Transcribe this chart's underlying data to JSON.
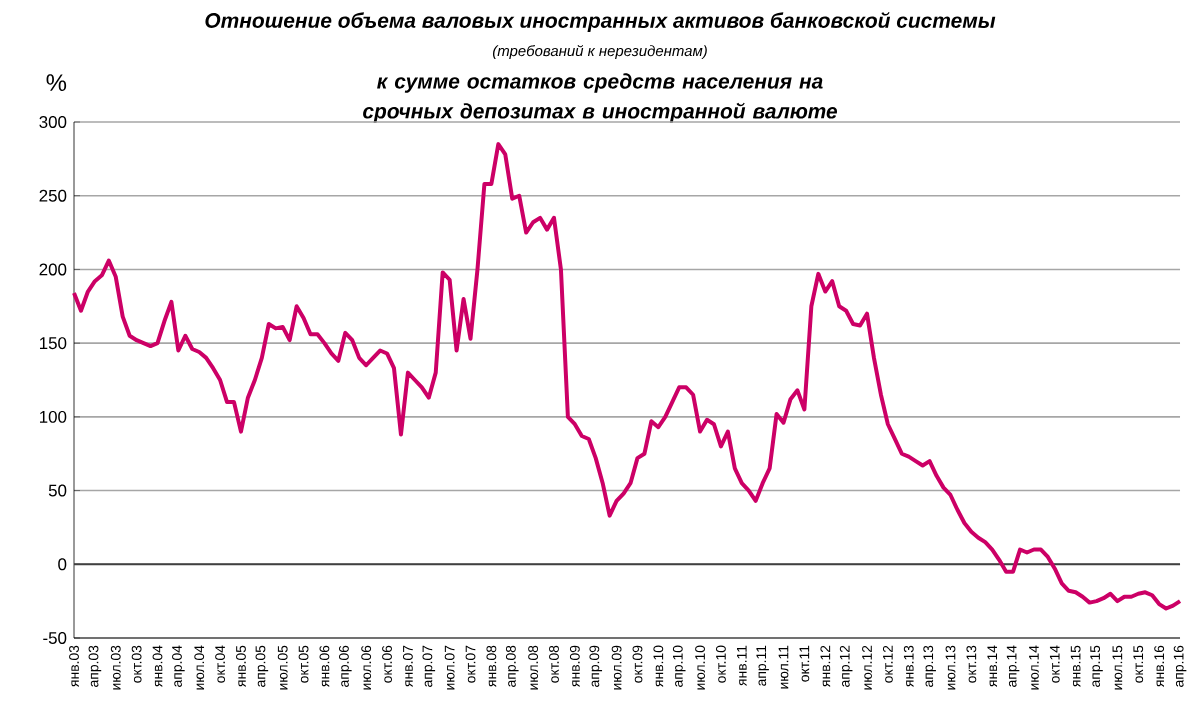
{
  "chart_data": {
    "type": "line",
    "title": "Отношение объема валовых иностранных активов банковской системы",
    "subtitle": "(требований к нерезидентам)",
    "annotations": [
      "к сумме остатков средств населения на срочных депозитах в иностранной валюте"
    ],
    "ylabel": "%",
    "categories": [
      "янв.03",
      null,
      null,
      "апр.03",
      null,
      null,
      "июл.03",
      null,
      null,
      "окт.03",
      null,
      null,
      "янв.04",
      null,
      null,
      "апр.04",
      null,
      null,
      "июл.04",
      null,
      null,
      "окт.04",
      null,
      null,
      "янв.05",
      null,
      null,
      "апр.05",
      null,
      null,
      "июл.05",
      null,
      null,
      "окт.05",
      null,
      null,
      "янв.06",
      null,
      null,
      "апр.06",
      null,
      null,
      "июл.06",
      null,
      null,
      "окт.06",
      null,
      null,
      "янв.07",
      null,
      null,
      "апр.07",
      null,
      null,
      "июл.07",
      null,
      null,
      "окт.07",
      null,
      null,
      "янв.08",
      null,
      null,
      "апр.08",
      null,
      null,
      "июл.08",
      null,
      null,
      "окт.08",
      null,
      null,
      "янв.09",
      null,
      null,
      "апр.09",
      null,
      null,
      "июл.09",
      null,
      null,
      "окт.09",
      null,
      null,
      "янв.10",
      null,
      null,
      "апр.10",
      null,
      null,
      "июл.10",
      null,
      null,
      "окт.10",
      null,
      null,
      "янв.11",
      null,
      null,
      "апр.11",
      null,
      null,
      "июл.11",
      null,
      null,
      "окт.11",
      null,
      null,
      "янв.12",
      null,
      null,
      "апр.12",
      null,
      null,
      "июл.12",
      null,
      null,
      "окт.12",
      null,
      null,
      "янв.13",
      null,
      null,
      "апр.13",
      null,
      null,
      "июл.13",
      null,
      null,
      "окт.13",
      null,
      null,
      "янв.14",
      null,
      null,
      "апр.14",
      null,
      null,
      "июл.14",
      null,
      null,
      "окт.14",
      null,
      null,
      "янв.15",
      null,
      null,
      "апр.15",
      null,
      null,
      "июл.15",
      null,
      null,
      "окт.15",
      null,
      null,
      "янв.16",
      null,
      null,
      "апр.16"
    ],
    "values": [
      184,
      172,
      185,
      192,
      196,
      206,
      195,
      168,
      155,
      152,
      150,
      148,
      150,
      165,
      178,
      145,
      155,
      146,
      144,
      140,
      133,
      125,
      110,
      110,
      90,
      113,
      125,
      140,
      163,
      160,
      161,
      152,
      175,
      167,
      156,
      156,
      150,
      143,
      138,
      157,
      152,
      140,
      135,
      140,
      145,
      143,
      133,
      88,
      130,
      125,
      120,
      113,
      130,
      198,
      193,
      145,
      180,
      153,
      200,
      258,
      258,
      285,
      278,
      248,
      250,
      225,
      232,
      235,
      227,
      235,
      200,
      100,
      95,
      87,
      85,
      72,
      55,
      33,
      43,
      48,
      55,
      72,
      75,
      97,
      93,
      100,
      110,
      120,
      120,
      115,
      90,
      98,
      95,
      80,
      90,
      65,
      55,
      50,
      43,
      55,
      65,
      102,
      96,
      112,
      118,
      105,
      175,
      197,
      185,
      192,
      175,
      172,
      163,
      162,
      170,
      140,
      115,
      95,
      85,
      75,
      73,
      70,
      67,
      70,
      60,
      52,
      47,
      37,
      28,
      22,
      18,
      15,
      10,
      3,
      -5,
      -5,
      10,
      8,
      10,
      10,
      5,
      -3,
      -13,
      -18,
      -19,
      -22,
      -26,
      -25,
      -23,
      -20,
      -25,
      -22,
      -22,
      -20,
      -19,
      -21,
      -27,
      -30,
      -28,
      -25
    ],
    "color": "#cc0066",
    "ylim": [
      -50,
      300
    ],
    "yticks": [
      -50,
      0,
      50,
      100,
      150,
      200,
      250,
      300
    ],
    "grid": "y",
    "ref_lines": [
      {
        "axis": "y",
        "value": 0,
        "color": "#404040"
      }
    ]
  }
}
